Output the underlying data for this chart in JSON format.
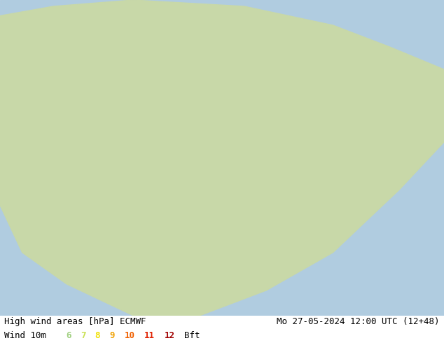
{
  "title_left": "High wind areas [hPa] ECMWF",
  "title_right": "Mo 27-05-2024 12:00 UTC (12+48)",
  "legend_label": "Wind 10m",
  "bft_values": [
    "6",
    "7",
    "8",
    "9",
    "10",
    "11",
    "12",
    "Bft"
  ],
  "bft_colors": [
    "#a0d080",
    "#c8e050",
    "#f0e000",
    "#f0a000",
    "#f06000",
    "#e02000",
    "#a00000",
    "#000000"
  ],
  "background_color": "#ffffff",
  "map_background": "#b0cce0",
  "land_color": "#c8d8a8",
  "fig_width": 6.34,
  "fig_height": 4.9,
  "dpi": 100,
  "font_size_title": 9,
  "font_size_legend": 9,
  "font_family": "monospace"
}
